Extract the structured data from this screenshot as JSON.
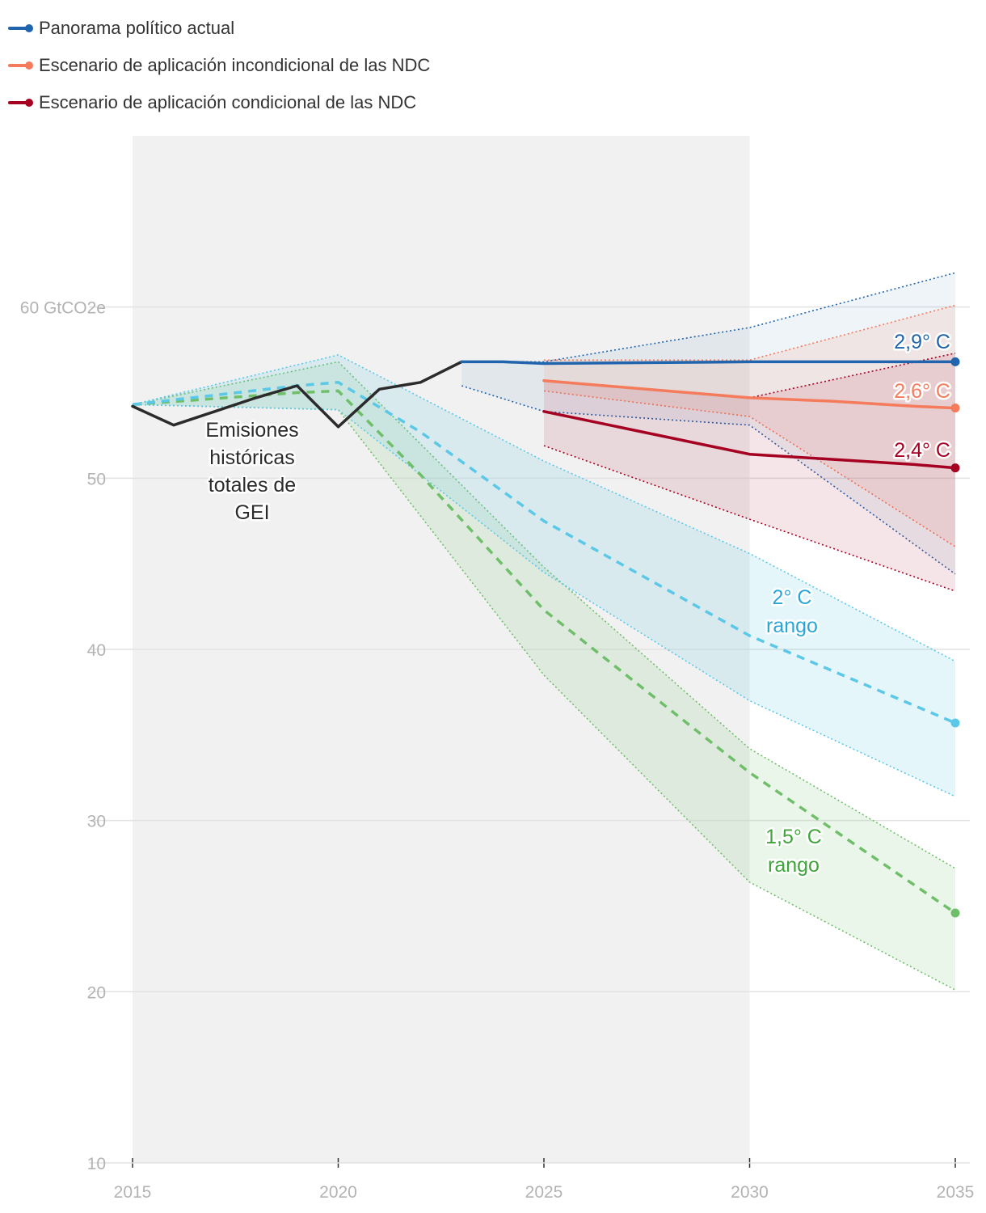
{
  "legend": [
    {
      "label": "Panorama político actual",
      "color": "#1f64ad"
    },
    {
      "label": "Escenario de aplicación incondicional de las NDC",
      "color": "#f47b5b"
    },
    {
      "label": "Escenario de aplicación condicional de las NDC",
      "color": "#a50021"
    }
  ],
  "chart_data": {
    "type": "line",
    "title": "",
    "xlabel": "",
    "ylabel": "",
    "xlim": [
      2015,
      2035
    ],
    "ylim": [
      10,
      70
    ],
    "x_ticks": [
      "2015",
      "2020",
      "2025",
      "2030",
      "2035"
    ],
    "y_ticks": [
      {
        "value": 10,
        "label": "10"
      },
      {
        "value": 20,
        "label": "20"
      },
      {
        "value": 30,
        "label": "30"
      },
      {
        "value": 40,
        "label": "40"
      },
      {
        "value": 50,
        "label": "50"
      },
      {
        "value": 60,
        "label": "60 GtCO2e"
      }
    ],
    "shaded_period": [
      2015,
      2030
    ],
    "grid": true,
    "colors": {
      "historical": "#2b2b2b",
      "policy": "#1f64ad",
      "unconditional": "#f47b5b",
      "conditional": "#a50021",
      "two_deg": "#5bc8e8",
      "one_five_deg": "#6fbf6a",
      "two_deg_text": "#2aa6d6",
      "one_five_deg_text": "#3fa43a"
    },
    "bands": [
      {
        "key": "one_five_deg",
        "upper": [
          [
            2015,
            54.3
          ],
          [
            2020,
            56.8
          ],
          [
            2025,
            44.8
          ],
          [
            2030,
            34.2
          ],
          [
            2035,
            27.2
          ]
        ],
        "lower": [
          [
            2015,
            54.3
          ],
          [
            2020,
            54.0
          ],
          [
            2025,
            38.5
          ],
          [
            2030,
            26.4
          ],
          [
            2035,
            20.1
          ]
        ]
      },
      {
        "key": "two_deg",
        "upper": [
          [
            2015,
            54.3
          ],
          [
            2020,
            57.2
          ],
          [
            2025,
            51.0
          ],
          [
            2030,
            45.6
          ],
          [
            2035,
            39.3
          ]
        ],
        "lower": [
          [
            2015,
            54.3
          ],
          [
            2020,
            54.0
          ],
          [
            2025,
            44.5
          ],
          [
            2030,
            37.0
          ],
          [
            2035,
            31.4
          ]
        ]
      },
      {
        "key": "policy",
        "upper": [
          [
            2023,
            56.8
          ],
          [
            2025,
            56.8
          ],
          [
            2030,
            58.8
          ],
          [
            2035,
            62.0
          ]
        ],
        "lower": [
          [
            2023,
            55.4
          ],
          [
            2025,
            53.9
          ],
          [
            2030,
            53.1
          ],
          [
            2035,
            44.4
          ]
        ]
      },
      {
        "key": "unconditional",
        "upper": [
          [
            2025,
            56.9
          ],
          [
            2030,
            56.9
          ],
          [
            2035,
            60.1
          ]
        ],
        "lower": [
          [
            2025,
            55.1
          ],
          [
            2030,
            53.6
          ],
          [
            2035,
            46.0
          ]
        ]
      },
      {
        "key": "conditional",
        "upper": [
          [
            2025,
            55.7
          ],
          [
            2030,
            54.7
          ],
          [
            2035,
            57.3
          ]
        ],
        "lower": [
          [
            2025,
            51.9
          ],
          [
            2030,
            47.6
          ],
          [
            2035,
            43.4
          ]
        ]
      }
    ],
    "series": [
      {
        "key": "historical",
        "values": [
          [
            2015,
            54.2
          ],
          [
            2016,
            53.1
          ],
          [
            2017,
            53.9
          ],
          [
            2018,
            54.7
          ],
          [
            2019,
            55.4
          ],
          [
            2020,
            53.0
          ],
          [
            2021,
            55.2
          ],
          [
            2022,
            55.6
          ],
          [
            2023,
            56.8
          ]
        ]
      },
      {
        "key": "one_five_deg",
        "values": [
          [
            2015,
            54.3
          ],
          [
            2019,
            55.0
          ],
          [
            2020,
            55.1
          ],
          [
            2022,
            50.2
          ],
          [
            2025,
            42.3
          ],
          [
            2030,
            32.8
          ],
          [
            2035,
            24.6
          ]
        ]
      },
      {
        "key": "two_deg",
        "values": [
          [
            2015,
            54.3
          ],
          [
            2019,
            55.4
          ],
          [
            2020,
            55.6
          ],
          [
            2022,
            52.7
          ],
          [
            2025,
            47.5
          ],
          [
            2030,
            40.8
          ],
          [
            2035,
            35.7
          ]
        ]
      },
      {
        "key": "policy",
        "values": [
          [
            2023,
            56.8
          ],
          [
            2024,
            56.8
          ],
          [
            2025,
            56.7
          ],
          [
            2030,
            56.8
          ],
          [
            2035,
            56.8
          ]
        ]
      },
      {
        "key": "unconditional",
        "values": [
          [
            2025,
            55.7
          ],
          [
            2030,
            54.7
          ],
          [
            2032,
            54.5
          ],
          [
            2034,
            54.2
          ],
          [
            2035,
            54.1
          ]
        ]
      },
      {
        "key": "conditional",
        "values": [
          [
            2025,
            53.9
          ],
          [
            2030,
            51.4
          ],
          [
            2032,
            51.1
          ],
          [
            2034,
            50.8
          ],
          [
            2035,
            50.6
          ]
        ]
      }
    ],
    "annotations": [
      {
        "key": "historical",
        "lines": [
          "Emisiones",
          "históricas",
          "totales de",
          "GEI"
        ]
      },
      {
        "key": "policy",
        "lines": [
          "2,9° C"
        ]
      },
      {
        "key": "unconditional",
        "lines": [
          "2,6° C"
        ]
      },
      {
        "key": "conditional",
        "lines": [
          "2,4° C"
        ]
      },
      {
        "key": "two_deg",
        "lines": [
          "2° C",
          "rango"
        ]
      },
      {
        "key": "one_five_deg",
        "lines": [
          "1,5° C",
          "rango"
        ]
      }
    ]
  }
}
